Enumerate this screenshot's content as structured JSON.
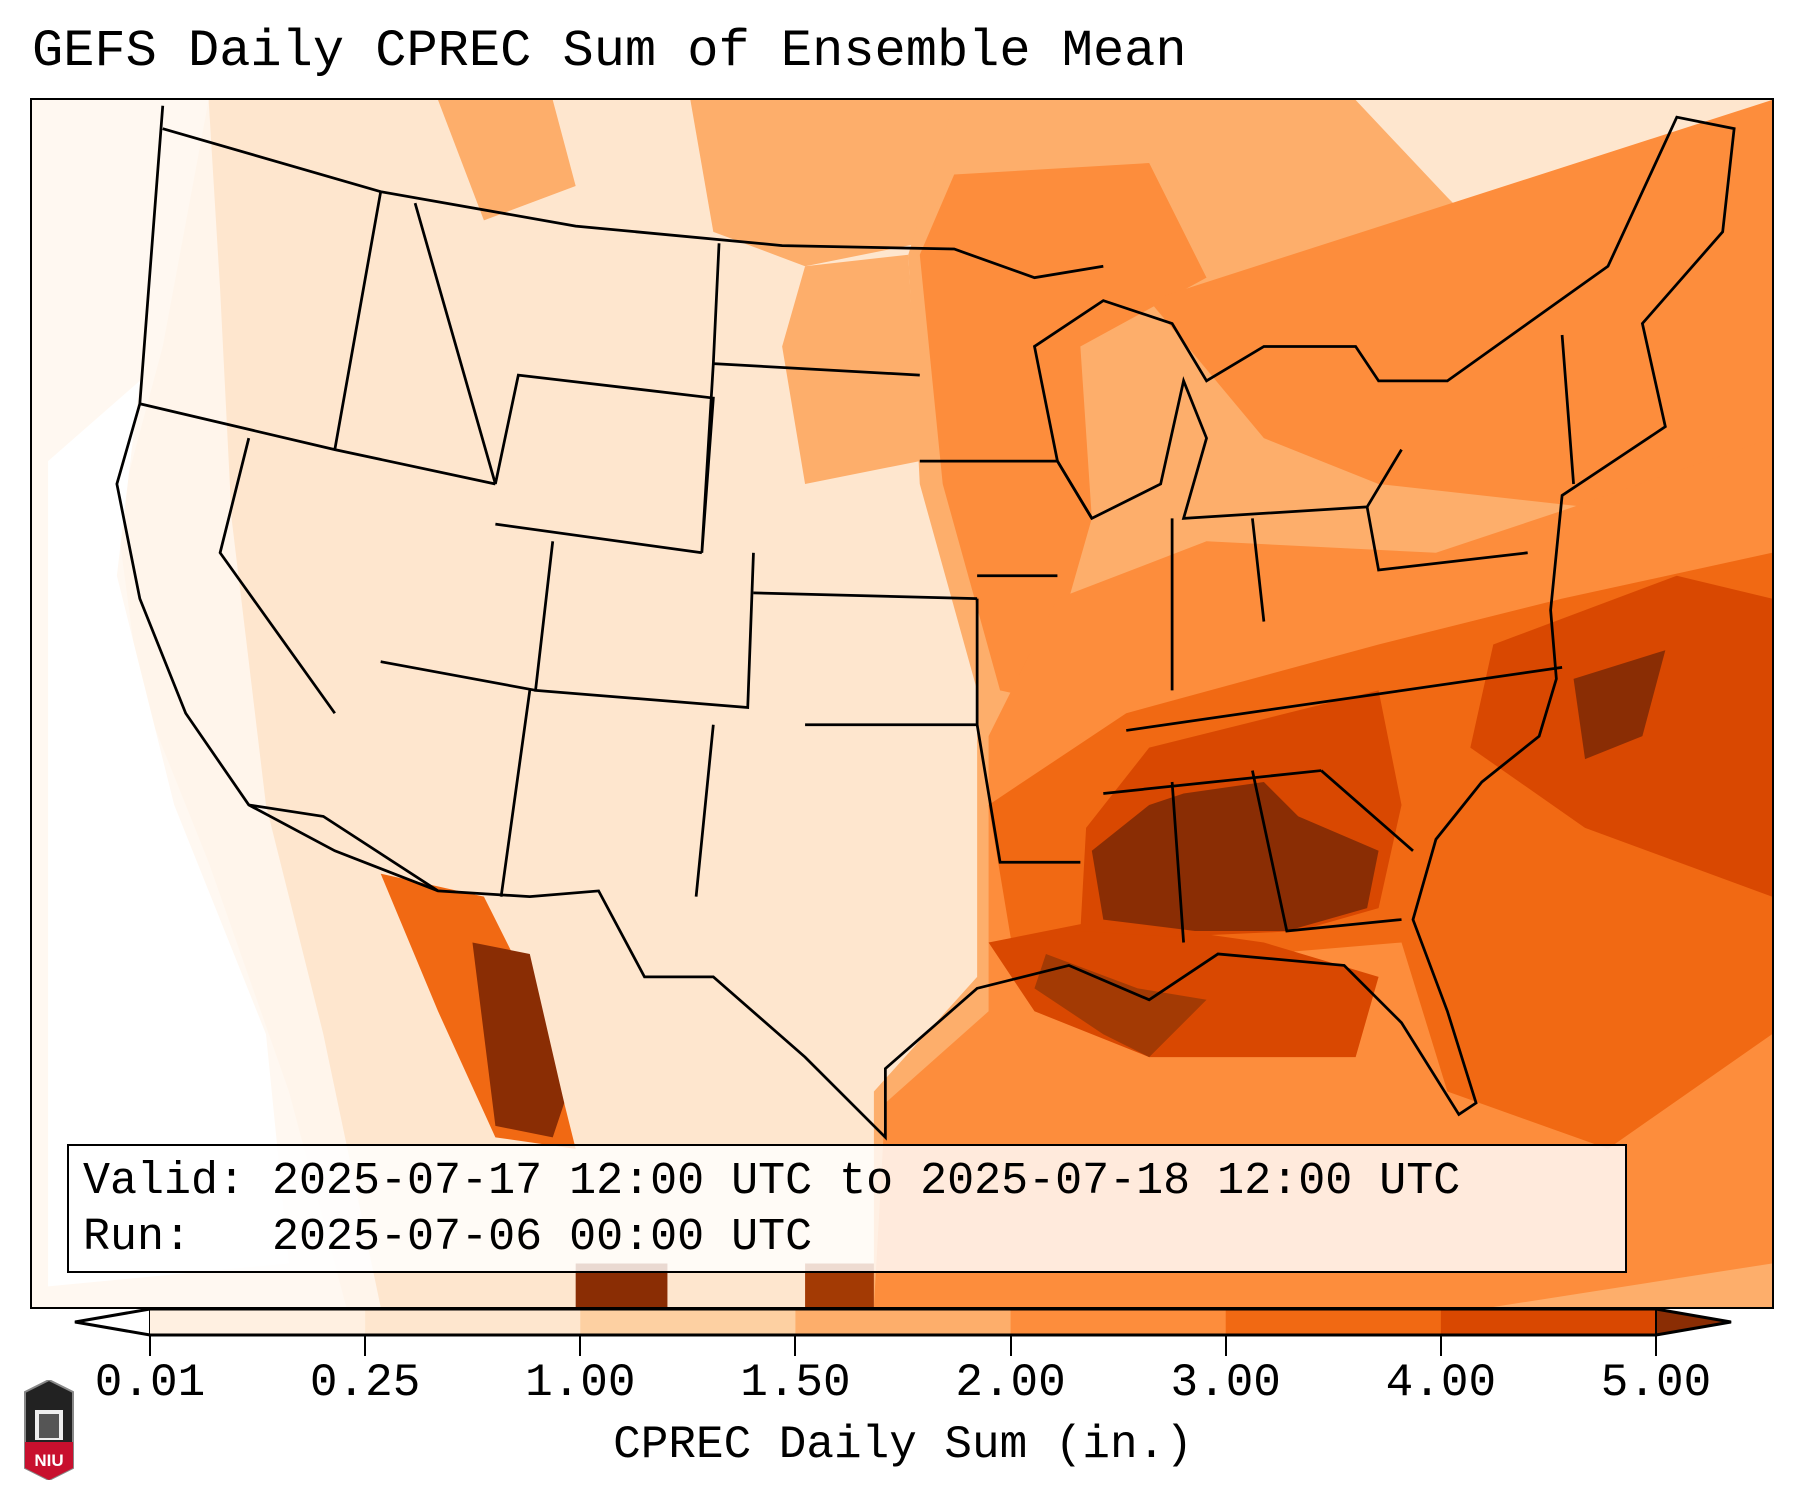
{
  "title": "GEFS Daily CPREC Sum of Ensemble Mean",
  "info": {
    "valid_line": "Valid: 2025-07-17 12:00 UTC to 2025-07-18 12:00 UTC",
    "run_line": "Run:   2025-07-06 00:00 UTC"
  },
  "colorbar": {
    "label": "CPREC Daily Sum (in.)",
    "ticks": [
      "0.01",
      "0.25",
      "1.00",
      "1.50",
      "2.00",
      "3.00",
      "4.00",
      "5.00"
    ],
    "colors": [
      "#fff0e1",
      "#fee6ce",
      "#fdd0a2",
      "#fdae6b",
      "#fd8d3c",
      "#f16913",
      "#d94801"
    ],
    "under_color": "#ffffff",
    "over_color": "#8a2d04"
  },
  "logo": {
    "text": "NIU"
  }
}
